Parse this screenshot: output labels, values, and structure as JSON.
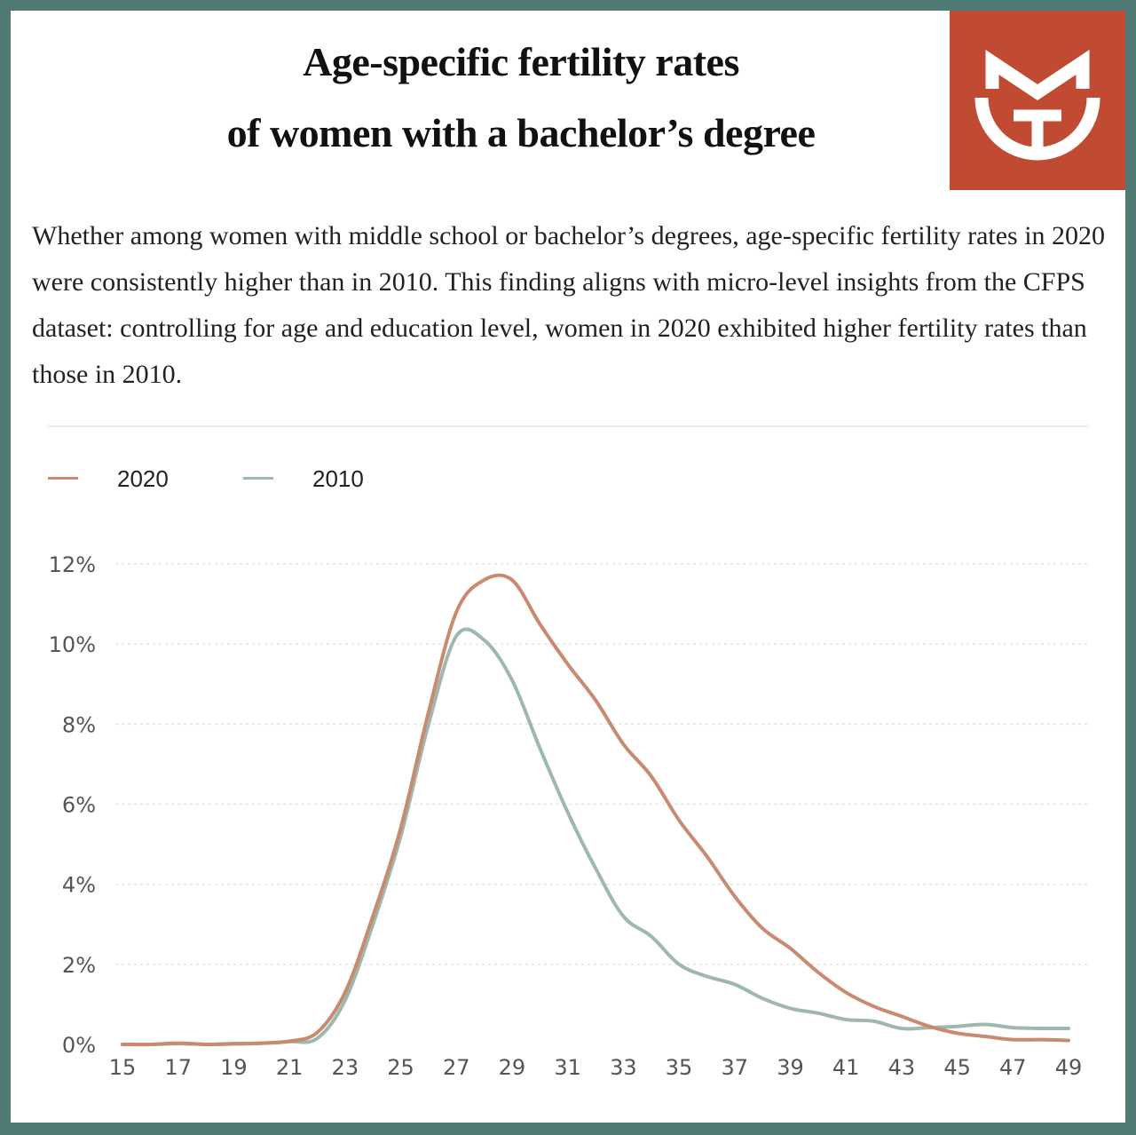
{
  "title_lines": [
    "Age-specific fertility rates",
    "of women with a bachelor’s degree"
  ],
  "description": "Whether among women with middle school or bachelor’s degrees, age-specific fertility rates in 2020 were consistently higher than in 2010. This finding aligns with micro-level insights from the CFPS dataset: controlling for age and education level, women in 2020 exhibited higher fertility rates than those in 2010.",
  "logo": {
    "icon": "mg-monogram-logo",
    "color": "#c04a32"
  },
  "chart_data": {
    "type": "line",
    "title": "",
    "xlabel": "",
    "ylabel": "",
    "x_range": [
      15,
      49
    ],
    "x_ticks": [
      15,
      17,
      19,
      21,
      23,
      25,
      27,
      29,
      31,
      33,
      35,
      37,
      39,
      41,
      43,
      45,
      47,
      49
    ],
    "x_tick_labels": [
      "15",
      "17",
      "19",
      "21",
      "23",
      "25",
      "27",
      "29",
      "31",
      "33",
      "35",
      "37",
      "39",
      "41",
      "43",
      "45",
      "47",
      "49"
    ],
    "y_range": [
      0,
      12
    ],
    "y_ticks": [
      0,
      2,
      4,
      6,
      8,
      10,
      12
    ],
    "y_tick_labels": [
      "0%",
      "2%",
      "4%",
      "6%",
      "8%",
      "10%",
      "12%"
    ],
    "grid": "horizontal dotted",
    "legend_position": "top-left",
    "series": [
      {
        "name": "2020",
        "color": "#c98a70",
        "x": [
          15,
          16,
          17,
          18,
          19,
          20,
          21,
          22,
          23,
          24,
          25,
          26,
          27,
          28,
          29,
          30,
          31,
          32,
          33,
          34,
          35,
          36,
          37,
          38,
          39,
          40,
          41,
          42,
          43,
          44,
          45,
          46,
          47,
          48,
          49
        ],
        "y": [
          0,
          0,
          0.03,
          0,
          0.02,
          0.03,
          0.08,
          0.3,
          1.3,
          3.2,
          5.4,
          8.3,
          10.8,
          11.6,
          11.6,
          10.5,
          9.5,
          8.6,
          7.5,
          6.7,
          5.6,
          4.7,
          3.7,
          2.9,
          2.4,
          1.8,
          1.3,
          0.95,
          0.7,
          0.45,
          0.28,
          0.2,
          0.12,
          0.12,
          0.1
        ]
      },
      {
        "name": "2010",
        "color": "#9fb8ae",
        "x": [
          15,
          16,
          17,
          18,
          19,
          20,
          21,
          22,
          23,
          24,
          25,
          26,
          27,
          28,
          29,
          30,
          31,
          32,
          33,
          34,
          35,
          36,
          37,
          38,
          39,
          40,
          41,
          42,
          43,
          44,
          45,
          46,
          47,
          48,
          49
        ],
        "y": [
          0,
          0,
          0.02,
          0,
          0.01,
          0.03,
          0.07,
          0.15,
          1.1,
          3.0,
          5.2,
          8.0,
          10.2,
          10.1,
          9.1,
          7.4,
          5.8,
          4.4,
          3.2,
          2.7,
          2.0,
          1.7,
          1.5,
          1.15,
          0.9,
          0.78,
          0.62,
          0.58,
          0.4,
          0.42,
          0.45,
          0.5,
          0.42,
          0.4,
          0.4
        ]
      }
    ]
  }
}
